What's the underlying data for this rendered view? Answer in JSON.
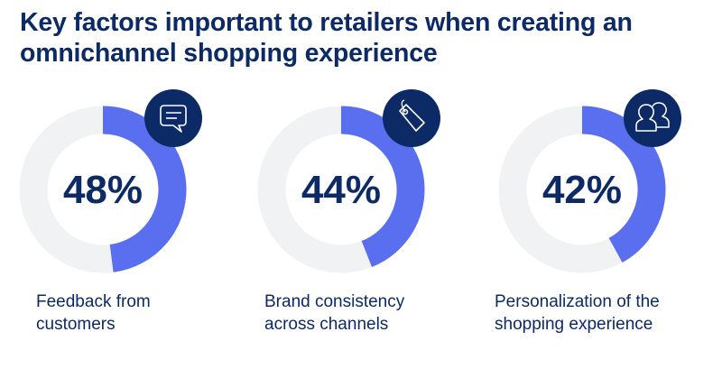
{
  "chart_data": {
    "type": "pie",
    "variant": "donut",
    "title_lines": [
      "Key factors important to retailers when creating an",
      "omnichannel shopping experience"
    ],
    "items": [
      {
        "value": 48,
        "display": "48%",
        "label_lines": [
          "Feedback from",
          "customers"
        ],
        "icon": "chat-bubble-icon"
      },
      {
        "value": 44,
        "display": "44%",
        "label_lines": [
          "Brand consistency",
          "across channels"
        ],
        "icon": "price-tag-icon"
      },
      {
        "value": 42,
        "display": "42%",
        "label_lines": [
          "Personalization of the",
          "shopping experience"
        ],
        "icon": "users-icon"
      }
    ],
    "colors": {
      "fill": "#5a6fef",
      "track": "#f1f2f4",
      "icon_bg": "#0c2a66",
      "text": "#0c2a66"
    }
  }
}
